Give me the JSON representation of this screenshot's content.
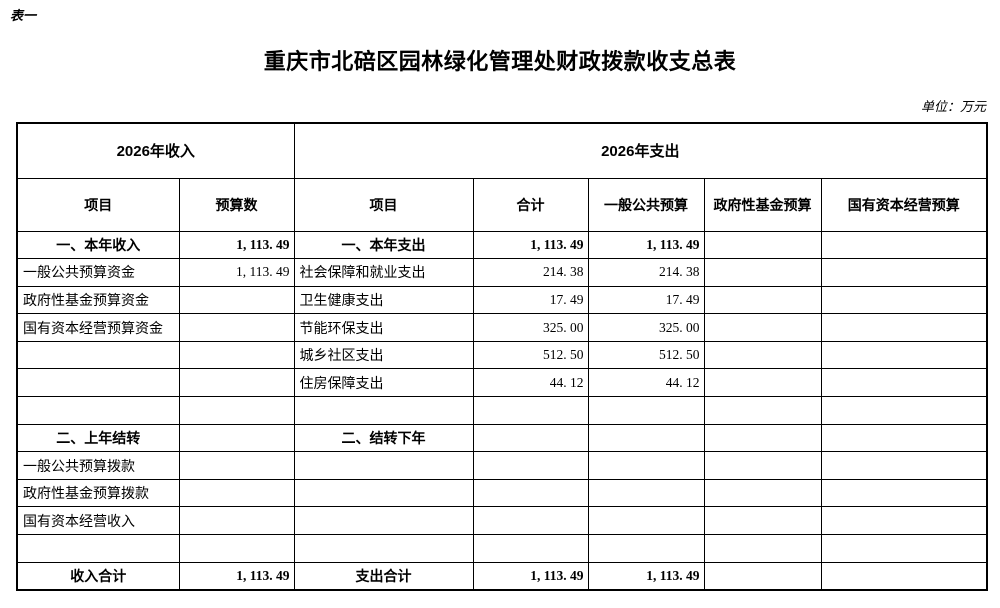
{
  "page": {
    "table_label": "表一",
    "title": "重庆市北碚区园林绿化管理处财政拨款收支总表",
    "unit_note": "单位：万元"
  },
  "table": {
    "income_header": "2026年收入",
    "expense_header": "2026年支出",
    "columns": {
      "income_item": "项目",
      "income_budget": "预算数",
      "expense_item": "项目",
      "expense_total": "合计",
      "general_public": "一般公共预算",
      "gov_fund": "政府性基金预算",
      "state_capital": "国有资本经营预算"
    },
    "rows": [
      {
        "section": true,
        "income_item": "一、本年收入",
        "income_value": "1, 113. 49",
        "expense_item": "一、本年支出",
        "expense_total": "1, 113. 49",
        "general_public": "1, 113. 49",
        "gov_fund": "",
        "state_capital": ""
      },
      {
        "section": false,
        "income_item": "一般公共预算资金",
        "income_value": "1, 113. 49",
        "expense_item": "社会保障和就业支出",
        "expense_total": "214. 38",
        "general_public": "214. 38",
        "gov_fund": "",
        "state_capital": ""
      },
      {
        "section": false,
        "income_item": "政府性基金预算资金",
        "income_value": "",
        "expense_item": "卫生健康支出",
        "expense_total": "17. 49",
        "general_public": "17. 49",
        "gov_fund": "",
        "state_capital": ""
      },
      {
        "section": false,
        "income_item": "国有资本经营预算资金",
        "income_value": "",
        "expense_item": "节能环保支出",
        "expense_total": "325. 00",
        "general_public": "325. 00",
        "gov_fund": "",
        "state_capital": ""
      },
      {
        "section": false,
        "income_item": "",
        "income_value": "",
        "expense_item": "城乡社区支出",
        "expense_total": "512. 50",
        "general_public": "512. 50",
        "gov_fund": "",
        "state_capital": ""
      },
      {
        "section": false,
        "income_item": "",
        "income_value": "",
        "expense_item": "住房保障支出",
        "expense_total": "44. 12",
        "general_public": "44. 12",
        "gov_fund": "",
        "state_capital": ""
      },
      {
        "section": false,
        "income_item": "",
        "income_value": "",
        "expense_item": "",
        "expense_total": "",
        "general_public": "",
        "gov_fund": "",
        "state_capital": ""
      },
      {
        "section": true,
        "income_item": "二、上年结转",
        "income_value": "",
        "expense_item": "二、结转下年",
        "expense_total": "",
        "general_public": "",
        "gov_fund": "",
        "state_capital": ""
      },
      {
        "section": false,
        "income_item": "一般公共预算拨款",
        "income_value": "",
        "expense_item": "",
        "expense_total": "",
        "general_public": "",
        "gov_fund": "",
        "state_capital": ""
      },
      {
        "section": false,
        "income_item": "政府性基金预算拨款",
        "income_value": "",
        "expense_item": "",
        "expense_total": "",
        "general_public": "",
        "gov_fund": "",
        "state_capital": ""
      },
      {
        "section": false,
        "income_item": "国有资本经营收入",
        "income_value": "",
        "expense_item": "",
        "expense_total": "",
        "general_public": "",
        "gov_fund": "",
        "state_capital": ""
      },
      {
        "section": false,
        "income_item": "",
        "income_value": "",
        "expense_item": "",
        "expense_total": "",
        "general_public": "",
        "gov_fund": "",
        "state_capital": ""
      },
      {
        "section": true,
        "income_item": "收入合计",
        "income_value": "1, 113. 49",
        "expense_item": "支出合计",
        "expense_total": "1, 113. 49",
        "general_public": "1, 113. 49",
        "gov_fund": "",
        "state_capital": ""
      }
    ]
  }
}
